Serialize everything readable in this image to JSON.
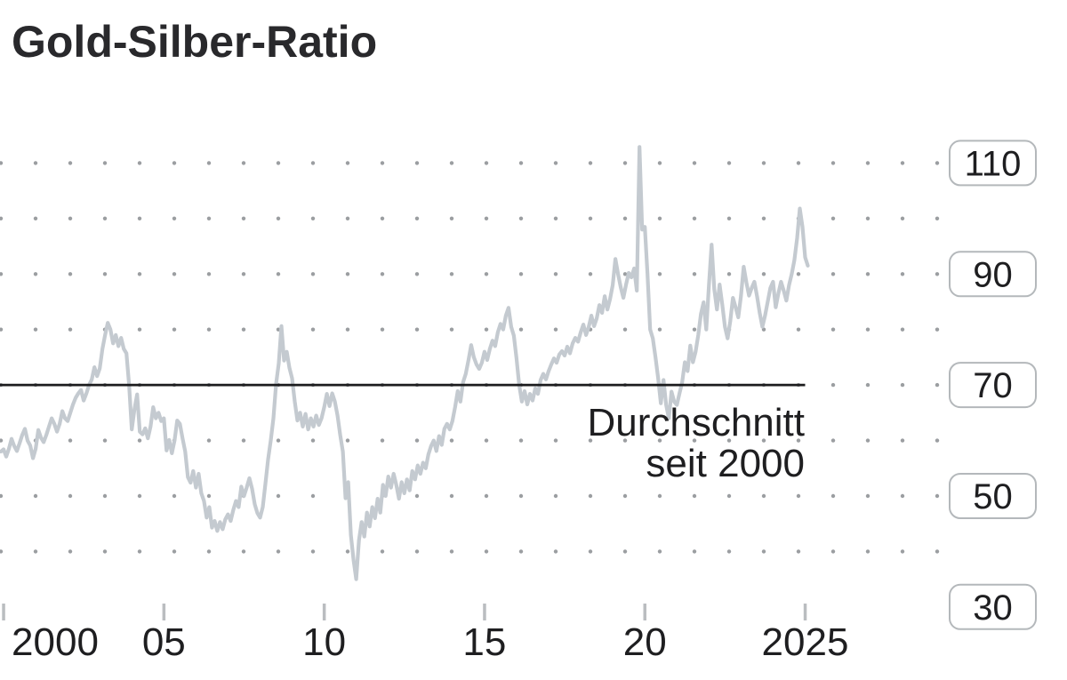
{
  "title": "Gold-Silber-Ratio",
  "annotation": {
    "line1": "Durchschnitt",
    "line2": "seit 2000"
  },
  "colors": {
    "background": "#ffffff",
    "title_text": "#29292c",
    "series_line": "#c4cad0",
    "average_line": "#1c1c1e",
    "grid_dot": "#9b9ea1",
    "axis_tick": "#babdc0",
    "axis_text": "#1e1e20",
    "label_box_border": "#b4b8bb",
    "label_box_fill": "#ffffff"
  },
  "x_axis": {
    "ticks": [
      {
        "label": "2000",
        "year": 2000
      },
      {
        "label": "05",
        "year": 2005
      },
      {
        "label": "10",
        "year": 2010
      },
      {
        "label": "15",
        "year": 2015
      },
      {
        "label": "20",
        "year": 2020
      },
      {
        "label": "2025",
        "year": 2025
      }
    ]
  },
  "y_axis": {
    "ticks": [
      110,
      90,
      70,
      50,
      30
    ],
    "grid_values": [
      110,
      100,
      90,
      80,
      70,
      60,
      50,
      40
    ]
  },
  "chart_data": {
    "type": "line",
    "title": "Gold-Silber-Ratio",
    "series_name": "Gold-Silber-Ratio",
    "x_start": 1999.9167,
    "x_step": 0.08333,
    "xlim": [
      1999.9,
      2025.2
    ],
    "ylim": [
      28,
      115
    ],
    "grid": "dotted",
    "legend": "none",
    "average_line": {
      "value": 70,
      "label": "Durchschnitt seit 2000",
      "x_end_year": 2025.0
    },
    "values": [
      58.0,
      58.4,
      57.1,
      58.5,
      60.3,
      59.0,
      58.1,
      59.5,
      61.0,
      62.1,
      60.0,
      59.1,
      56.8,
      58.5,
      61.9,
      60.5,
      59.7,
      61.0,
      62.5,
      64.0,
      63.0,
      61.6,
      63.0,
      65.3,
      64.0,
      63.5,
      65.0,
      66.5,
      67.7,
      68.5,
      69.1,
      67.2,
      68.5,
      70.0,
      71.0,
      73.2,
      71.6,
      73.0,
      76.5,
      79.0,
      81.2,
      80.0,
      77.5,
      79.0,
      77.0,
      78.5,
      76.5,
      75.7,
      70.0,
      62.0,
      65.6,
      68.3,
      61.6,
      61.1,
      62.2,
      60.4,
      62.5,
      66.0,
      64.0,
      65.0,
      63.5,
      64.0,
      58.2,
      60.1,
      57.7,
      60.0,
      63.6,
      63.0,
      60.4,
      58.0,
      53.4,
      52.4,
      54.5,
      51.5,
      54.0,
      50.5,
      49.1,
      46.1,
      48.0,
      44.3,
      45.5,
      43.7,
      45.3,
      44.0,
      45.8,
      46.7,
      45.5,
      47.5,
      49.1,
      48.0,
      51.7,
      50.0,
      51.5,
      53.2,
      51.3,
      48.5,
      46.9,
      46.1,
      48.0,
      52.2,
      56.6,
      60.0,
      64.0,
      70.2,
      73.9,
      80.6,
      74.4,
      76.0,
      73.1,
      71.2,
      67.0,
      63.6,
      65.0,
      62.5,
      64.8,
      62.0,
      64.0,
      62.5,
      64.5,
      62.8,
      64.0,
      66.0,
      68.4,
      66.2,
      68.5,
      67.0,
      64.5,
      61.0,
      58.0,
      49.6,
      52.5,
      43.0,
      38.5,
      35.0,
      42.0,
      45.3,
      42.7,
      47.0,
      44.5,
      48.0,
      46.0,
      49.5,
      47.0,
      52.0,
      50.0,
      53.5,
      51.5,
      54.0,
      52.0,
      49.5,
      52.5,
      50.5,
      53.0,
      51.0,
      54.5,
      53.0,
      55.5,
      54.0,
      56.0,
      55.0,
      57.5,
      59.0,
      60.0,
      58.1,
      60.8,
      59.2,
      62.1,
      63.0,
      62.0,
      63.5,
      66.0,
      68.9,
      67.0,
      70.5,
      72.0,
      74.5,
      77.2,
      75.0,
      73.7,
      72.9,
      74.0,
      76.0,
      74.5,
      76.5,
      78.0,
      77.0,
      79.5,
      81.0,
      80.0,
      82.5,
      83.9,
      80.5,
      78.9,
      74.8,
      70.0,
      67.0,
      68.9,
      66.5,
      68.4,
      67.2,
      69.4,
      68.4,
      70.9,
      72.0,
      71.0,
      72.5,
      73.7,
      74.8,
      74.0,
      75.5,
      76.1,
      75.3,
      76.9,
      75.7,
      77.5,
      78.5,
      77.8,
      79.5,
      80.9,
      79.0,
      80.5,
      82.5,
      80.6,
      82.0,
      84.4,
      83.0,
      86.0,
      83.6,
      85.5,
      88.0,
      92.7,
      90.0,
      87.6,
      85.7,
      88.1,
      90.2,
      89.4,
      91.0,
      87.0,
      112.9,
      98.0,
      98.5,
      90.0,
      80.0,
      78.4,
      75.0,
      71.2,
      66.7,
      70.9,
      66.4,
      64.0,
      68.8,
      67.0,
      66.4,
      68.5,
      70.5,
      74.1,
      72.5,
      77.1,
      74.1,
      76.0,
      79.0,
      82.8,
      84.9,
      80.0,
      88.0,
      95.3,
      87.3,
      83.6,
      88.1,
      84.5,
      80.5,
      78.4,
      81.5,
      85.7,
      84.0,
      82.2,
      86.0,
      91.3,
      88.5,
      86.1,
      87.5,
      88.6,
      86.0,
      83.0,
      80.5,
      82.5,
      85.0,
      87.5,
      88.6,
      84.0,
      86.5,
      88.6,
      87.0,
      85.2,
      88.0,
      90.0,
      92.5,
      96.5,
      101.8,
      98.5,
      93.0,
      91.5
    ]
  }
}
